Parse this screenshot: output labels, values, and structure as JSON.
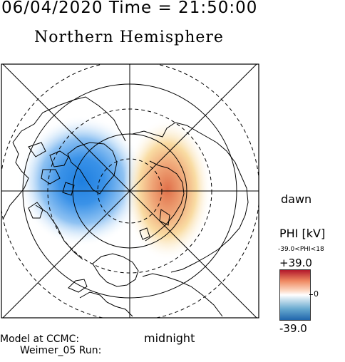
{
  "header": {
    "datetime": "06/04/2020 Time = 21:50:00",
    "hemisphere": "Northern Hemisphere"
  },
  "map": {
    "dawn_label": "dawn",
    "midnight_label": "midnight",
    "projection": "polar stereographic, north pole centered",
    "features": [
      "coastlines",
      "latitude circles",
      "meridian lines",
      "potential contours"
    ],
    "potential_cells": [
      {
        "name": "negative cell",
        "sign": "negative",
        "location": "pre-midnight / dusk side, over Canada/Greenland"
      },
      {
        "name": "positive cell",
        "sign": "positive",
        "location": "post-midnight / dawn side, over Siberia"
      }
    ]
  },
  "colorbar": {
    "title": "PHI [kV]",
    "range_text": "-39.0<PHI<18",
    "max_label": "+39.0",
    "zero_label": "0",
    "min_label": "-39.0",
    "colors": {
      "max": "#b2182b",
      "mid": "#ffffff",
      "min": "#2166ac"
    }
  },
  "model": {
    "line1": "Model at CCMC:",
    "line2": "Weimer_05 Run:"
  }
}
